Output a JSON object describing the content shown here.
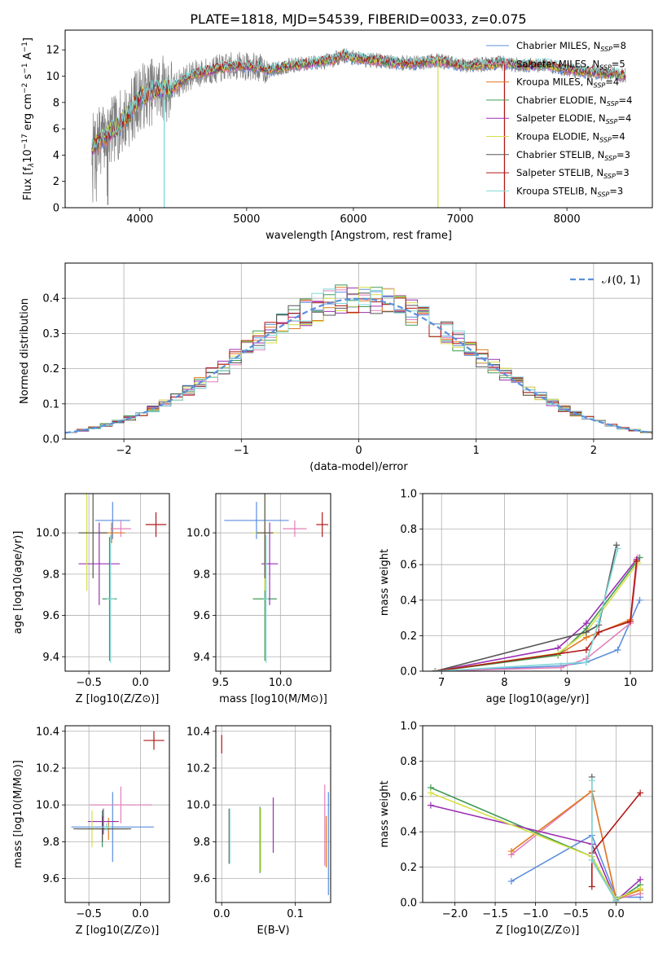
{
  "figure_title": "PLATE=1818, MJD=54539, FIBERID=0033, z=0.075",
  "colors": {
    "chabrier_miles": "#5b8fdc",
    "salpeter_miles": "#e27fb9",
    "kroupa_miles": "#e07a21",
    "chabrier_elodie": "#3f9a56",
    "salpeter_elodie": "#9a2fb3",
    "kroupa_elodie": "#d4e046",
    "chabrier_stelib": "#555555",
    "salpeter_stelib": "#b01818",
    "kroupa_stelib": "#7fd8d8",
    "data_gray": "#7f7f7f",
    "normal_curve": "#5b8fdc"
  },
  "chart_data": [
    {
      "id": "spectrum",
      "type": "line",
      "xlabel": "wavelength [Angstrom, rest frame]",
      "ylabel_parts": [
        "Flux [f",
        "λ",
        "10",
        "−17",
        " erg cm",
        "−2",
        " s",
        "−1",
        " A",
        "−1",
        "]"
      ],
      "xlim": [
        3300,
        8800
      ],
      "ylim": [
        0,
        13.5
      ],
      "xticks": [
        4000,
        5000,
        6000,
        7000,
        8000
      ],
      "yticks": [
        0,
        2,
        4,
        6,
        8,
        10,
        12
      ],
      "legend_position": "right",
      "legend": [
        {
          "label": "Chabrier MILES, N",
          "sub": "SSP",
          "value": "=8",
          "color_key": "chabrier_miles"
        },
        {
          "label": "Salpeter MILES, N",
          "sub": "SSP",
          "value": "=5",
          "color_key": "salpeter_miles"
        },
        {
          "label": "Kroupa MILES, N",
          "sub": "SSP",
          "value": "=4",
          "color_key": "kroupa_miles"
        },
        {
          "label": "Chabrier ELODIE, N",
          "sub": "SSP",
          "value": "=4",
          "color_key": "chabrier_elodie"
        },
        {
          "label": "Salpeter ELODIE, N",
          "sub": "SSP",
          "value": "=4",
          "color_key": "salpeter_elodie"
        },
        {
          "label": "Kroupa ELODIE, N",
          "sub": "SSP",
          "value": "=4",
          "color_key": "kroupa_elodie"
        },
        {
          "label": "Chabrier STELIB, N",
          "sub": "SSP",
          "value": "=3",
          "color_key": "chabrier_stelib"
        },
        {
          "label": "Salpeter STELIB, N",
          "sub": "SSP",
          "value": "=3",
          "color_key": "salpeter_stelib"
        },
        {
          "label": "Kroupa STELIB, N",
          "sub": "SSP",
          "value": "=3",
          "color_key": "kroupa_stelib"
        }
      ],
      "continuum": [
        [
          3550,
          4.6
        ],
        [
          3700,
          5.6
        ],
        [
          3800,
          6.2
        ],
        [
          3900,
          7.2
        ],
        [
          4000,
          8.4
        ],
        [
          4100,
          8.8
        ],
        [
          4200,
          9.1
        ],
        [
          4300,
          9.0
        ],
        [
          4400,
          9.7
        ],
        [
          4500,
          10.1
        ],
        [
          4700,
          10.5
        ],
        [
          4900,
          10.8
        ],
        [
          5100,
          10.7
        ],
        [
          5200,
          10.4
        ],
        [
          5400,
          10.8
        ],
        [
          5600,
          11.0
        ],
        [
          5800,
          11.2
        ],
        [
          5900,
          11.6
        ],
        [
          6000,
          11.4
        ],
        [
          6200,
          11.2
        ],
        [
          6400,
          11.0
        ],
        [
          6600,
          11.0
        ],
        [
          6800,
          11.2
        ],
        [
          7000,
          10.8
        ],
        [
          7200,
          10.9
        ],
        [
          7400,
          11.0
        ],
        [
          7600,
          10.8
        ],
        [
          7800,
          10.9
        ],
        [
          8000,
          10.5
        ],
        [
          8200,
          10.3
        ],
        [
          8400,
          10.2
        ],
        [
          8550,
          10.0
        ]
      ],
      "features": [
        {
          "x": 3700,
          "ymin": 0.2,
          "color_key": "data_gray"
        },
        {
          "x": 4228,
          "ymin": 0,
          "color_key": "kroupa_stelib"
        },
        {
          "x": 6792,
          "ymin": 0,
          "color_key": "kroupa_elodie"
        },
        {
          "x": 7415,
          "ymin": 0,
          "color_key": "salpeter_stelib"
        }
      ]
    },
    {
      "id": "residuals",
      "type": "histogram",
      "xlabel": "(data-model)/error",
      "ylabel": "Normed distribution",
      "xlim": [
        -2.5,
        2.5
      ],
      "ylim": [
        0,
        0.5
      ],
      "xticks": [
        -2,
        -1,
        0,
        1,
        2
      ],
      "xtick_labels": [
        "−2",
        "−1",
        "0",
        "1",
        "2"
      ],
      "yticks": [
        0.0,
        0.1,
        0.2,
        0.3,
        0.4
      ],
      "ytick_labels": [
        "0.0",
        "0.1",
        "0.2",
        "0.3",
        "0.4"
      ],
      "bins_edges_start": -2.5,
      "bin_width": 0.1,
      "legend_label": "𝒩(0, 1)",
      "legend_position": "upper right",
      "series_color_keys": [
        "chabrier_miles",
        "salpeter_miles",
        "kroupa_miles",
        "chabrier_elodie",
        "salpeter_elodie",
        "kroupa_elodie",
        "chabrier_stelib",
        "salpeter_stelib",
        "kroupa_stelib"
      ]
    },
    {
      "id": "age_vs_Z",
      "type": "scatter",
      "xlabel": "Z [log10(Z/Z⊙)]",
      "ylabel": "age  [log10(age/yr)]",
      "xlim": [
        -0.73,
        0.28
      ],
      "ylim": [
        9.33,
        10.19
      ],
      "xticks": [
        -0.5,
        0.0
      ],
      "xtick_labels": [
        "−0.5",
        "0.0"
      ],
      "yticks": [
        9.4,
        9.6,
        9.8,
        10.0
      ],
      "ytick_labels": [
        "9.4",
        "9.6",
        "9.8",
        "10.0"
      ],
      "points": [
        {
          "x": -0.27,
          "y": 10.06,
          "xerr": 0.17,
          "yerr": 0.09,
          "color_key": "chabrier_miles"
        },
        {
          "x": -0.19,
          "y": 10.02,
          "xerr": 0.1,
          "yerr": 0.04,
          "color_key": "salpeter_miles"
        },
        {
          "x": -0.28,
          "y": 10.0,
          "xerr": 0.13,
          "yerr": 0.05,
          "color_key": "kroupa_miles"
        },
        {
          "x": -0.3,
          "y": 9.68,
          "xerr": 0.07,
          "yerr": 0.3,
          "color_key": "chabrier_elodie"
        },
        {
          "x": -0.4,
          "y": 9.85,
          "xerr": 0.2,
          "yerr": 0.2,
          "color_key": "salpeter_elodie"
        },
        {
          "x": -0.52,
          "y": 10.0,
          "xerr": 0.07,
          "yerr": 0.28,
          "color_key": "kroupa_elodie"
        },
        {
          "x": -0.46,
          "y": 10.0,
          "xerr": 0.14,
          "yerr": 0.22,
          "color_key": "chabrier_stelib"
        },
        {
          "x": 0.15,
          "y": 10.04,
          "xerr": 0.1,
          "yerr": 0.06,
          "color_key": "salpeter_stelib"
        },
        {
          "x": -0.29,
          "y": 9.68,
          "xerr": 0.04,
          "yerr": 0.31,
          "color_key": "kroupa_stelib"
        }
      ]
    },
    {
      "id": "age_vs_mass",
      "type": "scatter",
      "xlabel": "mass [log10(M/M⊙)]",
      "ylabel": "",
      "xlim": [
        9.46,
        10.42
      ],
      "ylim": [
        9.33,
        10.19
      ],
      "xticks": [
        9.5,
        10.0
      ],
      "xtick_labels": [
        "9.5",
        "10.0"
      ],
      "yticks": [
        9.4,
        9.6,
        9.8,
        10.0
      ],
      "ytick_labels": [
        "9.4",
        "9.6",
        "9.8",
        "10.0"
      ],
      "points": [
        {
          "x": 9.8,
          "y": 10.06,
          "xerr": 0.27,
          "yerr": 0.09,
          "color_key": "chabrier_miles"
        },
        {
          "x": 10.12,
          "y": 10.02,
          "xerr": 0.1,
          "yerr": 0.04,
          "color_key": "salpeter_miles"
        },
        {
          "x": 9.87,
          "y": 10.0,
          "xerr": 0.05,
          "yerr": 0.05,
          "color_key": "kroupa_miles"
        },
        {
          "x": 9.87,
          "y": 9.68,
          "xerr": 0.1,
          "yerr": 0.3,
          "color_key": "chabrier_elodie"
        },
        {
          "x": 9.91,
          "y": 9.85,
          "xerr": 0.07,
          "yerr": 0.2,
          "color_key": "salpeter_elodie"
        },
        {
          "x": 9.87,
          "y": 10.0,
          "xerr": 0.1,
          "yerr": 0.28,
          "color_key": "kroupa_elodie"
        },
        {
          "x": 9.87,
          "y": 10.0,
          "xerr": 0.07,
          "yerr": 0.22,
          "color_key": "chabrier_stelib"
        },
        {
          "x": 10.35,
          "y": 10.04,
          "xerr": 0.05,
          "yerr": 0.06,
          "color_key": "salpeter_stelib"
        },
        {
          "x": 9.88,
          "y": 9.68,
          "xerr": 0.02,
          "yerr": 0.31,
          "color_key": "kroupa_stelib"
        }
      ]
    },
    {
      "id": "weight_vs_age",
      "type": "line",
      "xlabel": "age  [log10(age/yr)]",
      "ylabel": "mass weight",
      "xlim": [
        6.7,
        10.35
      ],
      "ylim": [
        0,
        1.0
      ],
      "xticks": [
        7,
        8,
        9,
        10
      ],
      "xtick_labels": [
        "7",
        "8",
        "9",
        "10"
      ],
      "yticks": [
        0.0,
        0.2,
        0.4,
        0.6,
        0.8,
        1.0
      ],
      "ytick_labels": [
        "0.0",
        "0.2",
        "0.4",
        "0.6",
        "0.8",
        "1.0"
      ],
      "series": [
        {
          "color_key": "chabrier_miles",
          "x": [
            6.9,
            8.9,
            9.3,
            9.8,
            10.0,
            10.15
          ],
          "y": [
            0.0,
            0.03,
            0.05,
            0.12,
            0.28,
            0.4
          ]
        },
        {
          "color_key": "salpeter_miles",
          "x": [
            6.9,
            8.9,
            9.3,
            10.0,
            10.12
          ],
          "y": [
            0.0,
            0.02,
            0.07,
            0.27,
            0.64
          ]
        },
        {
          "color_key": "kroupa_miles",
          "x": [
            6.9,
            8.85,
            9.3,
            10.0,
            10.1
          ],
          "y": [
            0.0,
            0.09,
            0.19,
            0.29,
            0.62
          ]
        },
        {
          "color_key": "chabrier_elodie",
          "x": [
            6.9,
            8.85,
            9.3,
            10.15
          ],
          "y": [
            0.0,
            0.09,
            0.24,
            0.64
          ]
        },
        {
          "color_key": "salpeter_elodie",
          "x": [
            6.9,
            8.85,
            9.3,
            10.1
          ],
          "y": [
            0.0,
            0.13,
            0.27,
            0.63
          ]
        },
        {
          "color_key": "kroupa_elodie",
          "x": [
            6.9,
            8.85,
            9.3,
            10.12
          ],
          "y": [
            0.0,
            0.1,
            0.22,
            0.61
          ]
        },
        {
          "color_key": "chabrier_stelib",
          "x": [
            6.9,
            9.3,
            9.5,
            9.78
          ],
          "y": [
            0.0,
            0.22,
            0.26,
            0.71
          ]
        },
        {
          "color_key": "salpeter_stelib",
          "x": [
            6.9,
            9.3,
            9.5,
            10.0,
            10.1
          ],
          "y": [
            0.0,
            0.12,
            0.22,
            0.28,
            0.62
          ]
        },
        {
          "color_key": "kroupa_stelib",
          "x": [
            6.9,
            9.3,
            9.5,
            9.8
          ],
          "y": [
            0.0,
            0.05,
            0.28,
            0.69
          ]
        }
      ]
    },
    {
      "id": "mass_vs_Z",
      "type": "scatter",
      "xlabel": "Z [log10(Z/Z⊙)]",
      "ylabel": "mass [log10(M/M⊙)]",
      "xlim": [
        -0.73,
        0.28
      ],
      "ylim": [
        9.47,
        10.43
      ],
      "xticks": [
        -0.5,
        0.0
      ],
      "xtick_labels": [
        "−0.5",
        "0.0"
      ],
      "yticks": [
        9.6,
        9.8,
        10.0,
        10.2,
        10.4
      ],
      "ytick_labels": [
        "9.6",
        "9.8",
        "10.0",
        "10.2",
        "10.4"
      ],
      "points": [
        {
          "x": -0.27,
          "y": 9.88,
          "xerr": 0.4,
          "yerr": 0.19,
          "color_key": "chabrier_miles"
        },
        {
          "x": -0.19,
          "y": 10.0,
          "xerr": 0.3,
          "yerr": 0.1,
          "color_key": "salpeter_miles"
        },
        {
          "x": -0.31,
          "y": 9.87,
          "xerr": 0.2,
          "yerr": 0.06,
          "color_key": "kroupa_miles"
        },
        {
          "x": -0.37,
          "y": 9.87,
          "xerr": 0.25,
          "yerr": 0.1,
          "color_key": "chabrier_elodie"
        },
        {
          "x": -0.36,
          "y": 9.91,
          "xerr": 0.15,
          "yerr": 0.07,
          "color_key": "salpeter_elodie"
        },
        {
          "x": -0.47,
          "y": 9.87,
          "xerr": 0.1,
          "yerr": 0.1,
          "color_key": "kroupa_elodie"
        },
        {
          "x": -0.37,
          "y": 9.87,
          "xerr": 0.28,
          "yerr": 0.07,
          "color_key": "chabrier_stelib"
        },
        {
          "x": 0.13,
          "y": 10.35,
          "xerr": 0.1,
          "yerr": 0.05,
          "color_key": "salpeter_stelib"
        },
        {
          "x": -0.33,
          "y": 9.88,
          "xerr": 0.05,
          "yerr": 0.02,
          "color_key": "kroupa_stelib"
        }
      ]
    },
    {
      "id": "mass_vs_ebv",
      "type": "scatter",
      "xlabel": "E(B-V)",
      "ylabel": "",
      "xlim": [
        -0.008,
        0.148
      ],
      "ylim": [
        9.47,
        10.43
      ],
      "xticks": [
        0.0,
        0.1
      ],
      "xtick_labels": [
        "0.0",
        "0.1"
      ],
      "yticks": [
        9.6,
        9.8,
        10.0,
        10.2,
        10.4
      ],
      "ytick_labels": [
        "9.6",
        "9.8",
        "10.0",
        "10.2",
        "10.4"
      ],
      "points": [
        {
          "x": 0.145,
          "y": 9.79,
          "xerr": 0,
          "yerr": 0.28,
          "color_key": "chabrier_miles"
        },
        {
          "x": 0.14,
          "y": 9.89,
          "xerr": 0,
          "yerr": 0.22,
          "color_key": "salpeter_miles"
        },
        {
          "x": 0.142,
          "y": 9.8,
          "xerr": 0,
          "yerr": 0.14,
          "color_key": "kroupa_miles"
        },
        {
          "x": 0.052,
          "y": 9.81,
          "xerr": 0,
          "yerr": 0.18,
          "color_key": "chabrier_elodie"
        },
        {
          "x": 0.07,
          "y": 9.89,
          "xerr": 0,
          "yerr": 0.15,
          "color_key": "salpeter_elodie"
        },
        {
          "x": 0.053,
          "y": 9.81,
          "xerr": 0,
          "yerr": 0.17,
          "color_key": "kroupa_elodie"
        },
        {
          "x": 0.01,
          "y": 9.83,
          "xerr": 0,
          "yerr": 0.15,
          "color_key": "chabrier_stelib"
        },
        {
          "x": 0.0,
          "y": 10.33,
          "xerr": 0,
          "yerr": 0.05,
          "color_key": "salpeter_stelib"
        },
        {
          "x": 0.011,
          "y": 9.83,
          "xerr": 0,
          "yerr": 0.15,
          "color_key": "kroupa_stelib"
        }
      ]
    },
    {
      "id": "weight_vs_Z",
      "type": "line",
      "xlabel": "Z [log10(Z/Z⊙)]",
      "ylabel": "mass weight",
      "xlim": [
        -2.4,
        0.45
      ],
      "ylim": [
        0,
        1.0
      ],
      "xticks": [
        -2.0,
        -1.5,
        -1.0,
        -0.5,
        0.0
      ],
      "xtick_labels": [
        "−2.0",
        "−1.5",
        "−1.0",
        "−0.5",
        "0.0"
      ],
      "yticks": [
        0.0,
        0.2,
        0.4,
        0.6,
        0.8,
        1.0
      ],
      "ytick_labels": [
        "0.0",
        "0.2",
        "0.4",
        "0.6",
        "0.8",
        "1.0"
      ],
      "series": [
        {
          "color_key": "chabrier_miles",
          "x": [
            -1.3,
            -0.3,
            0.0,
            0.3
          ],
          "y": [
            0.12,
            0.38,
            0.03,
            0.03
          ]
        },
        {
          "color_key": "salpeter_miles",
          "x": [
            -1.3,
            -0.3,
            0.0,
            0.3
          ],
          "y": [
            0.27,
            0.63,
            0.02,
            0.05
          ]
        },
        {
          "color_key": "kroupa_miles",
          "x": [
            -1.3,
            -0.3,
            0.0,
            0.3
          ],
          "y": [
            0.29,
            0.63,
            0.02,
            0.07
          ]
        },
        {
          "color_key": "chabrier_elodie",
          "x": [
            -2.3,
            -0.3,
            0.0,
            0.3
          ],
          "y": [
            0.65,
            0.26,
            0.01,
            0.1
          ]
        },
        {
          "color_key": "salpeter_elodie",
          "x": [
            -2.3,
            -0.3,
            0.0,
            0.3
          ],
          "y": [
            0.55,
            0.33,
            0.01,
            0.13
          ]
        },
        {
          "color_key": "kroupa_elodie",
          "x": [
            -2.3,
            -0.3,
            0.0,
            0.3
          ],
          "y": [
            0.62,
            0.26,
            0.02,
            0.08
          ]
        },
        {
          "color_key": "chabrier_stelib",
          "x": [
            -0.3,
            -0.3,
            0.0
          ],
          "y": [
            0.71,
            0.24,
            0.01
          ]
        },
        {
          "color_key": "salpeter_stelib",
          "x": [
            -0.3,
            -0.3,
            0.3
          ],
          "y": [
            0.09,
            0.28,
            0.62
          ]
        },
        {
          "color_key": "kroupa_stelib",
          "x": [
            -0.3,
            -0.3,
            0.0
          ],
          "y": [
            0.69,
            0.24,
            0.01
          ]
        }
      ]
    }
  ]
}
